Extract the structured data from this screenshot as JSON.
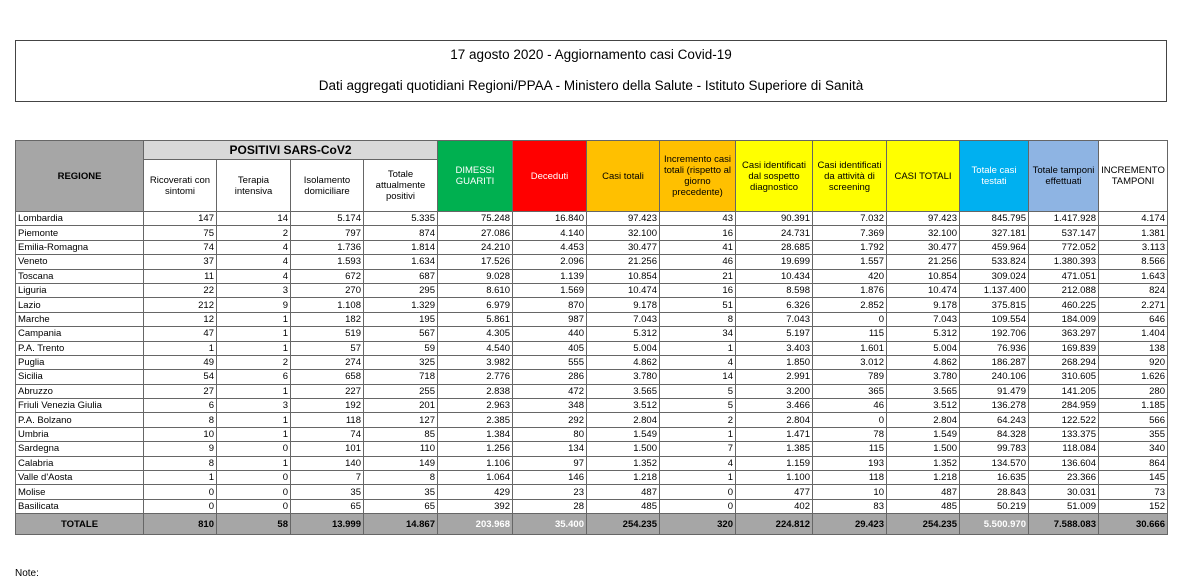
{
  "header": {
    "title": "17 agosto 2020 - Aggiornamento casi Covid-19",
    "subtitle": "Dati aggregati quotidiani Regioni/PPAA - Ministero della Salute - Istituto Superiore di Sanità"
  },
  "table": {
    "group_header": "POSITIVI SARS-CoV2",
    "columns": [
      "REGIONE",
      "Ricoverati con sintomi",
      "Terapia intensiva",
      "Isolamento domiciliare",
      "Totale attualmente positivi",
      "DIMESSI GUARITI",
      "Deceduti",
      "Casi totali",
      "Incremento casi totali (rispetto al giorno precedente)",
      "Casi identificati dal sospetto diagnostico",
      "Casi identificati da attività di screening",
      "CASI TOTALI",
      "Totale casi testati",
      "Totale tamponi effettuati",
      "INCREMENTO TAMPONI"
    ],
    "rows": [
      [
        "Lombardia",
        "147",
        "14",
        "5.174",
        "5.335",
        "75.248",
        "16.840",
        "97.423",
        "43",
        "90.391",
        "7.032",
        "97.423",
        "845.795",
        "1.417.928",
        "4.174"
      ],
      [
        "Piemonte",
        "75",
        "2",
        "797",
        "874",
        "27.086",
        "4.140",
        "32.100",
        "16",
        "24.731",
        "7.369",
        "32.100",
        "327.181",
        "537.147",
        "1.381"
      ],
      [
        "Emilia-Romagna",
        "74",
        "4",
        "1.736",
        "1.814",
        "24.210",
        "4.453",
        "30.477",
        "41",
        "28.685",
        "1.792",
        "30.477",
        "459.964",
        "772.052",
        "3.113"
      ],
      [
        "Veneto",
        "37",
        "4",
        "1.593",
        "1.634",
        "17.526",
        "2.096",
        "21.256",
        "46",
        "19.699",
        "1.557",
        "21.256",
        "533.824",
        "1.380.393",
        "8.566"
      ],
      [
        "Toscana",
        "11",
        "4",
        "672",
        "687",
        "9.028",
        "1.139",
        "10.854",
        "21",
        "10.434",
        "420",
        "10.854",
        "309.024",
        "471.051",
        "1.643"
      ],
      [
        "Liguria",
        "22",
        "3",
        "270",
        "295",
        "8.610",
        "1.569",
        "10.474",
        "16",
        "8.598",
        "1.876",
        "10.474",
        "1.137.400",
        "212.088",
        "824"
      ],
      [
        "Lazio",
        "212",
        "9",
        "1.108",
        "1.329",
        "6.979",
        "870",
        "9.178",
        "51",
        "6.326",
        "2.852",
        "9.178",
        "375.815",
        "460.225",
        "2.271"
      ],
      [
        "Marche",
        "12",
        "1",
        "182",
        "195",
        "5.861",
        "987",
        "7.043",
        "8",
        "7.043",
        "0",
        "7.043",
        "109.554",
        "184.009",
        "646"
      ],
      [
        "Campania",
        "47",
        "1",
        "519",
        "567",
        "4.305",
        "440",
        "5.312",
        "34",
        "5.197",
        "115",
        "5.312",
        "192.706",
        "363.297",
        "1.404"
      ],
      [
        "P.A. Trento",
        "1",
        "1",
        "57",
        "59",
        "4.540",
        "405",
        "5.004",
        "1",
        "3.403",
        "1.601",
        "5.004",
        "76.936",
        "169.839",
        "138"
      ],
      [
        "Puglia",
        "49",
        "2",
        "274",
        "325",
        "3.982",
        "555",
        "4.862",
        "4",
        "1.850",
        "3.012",
        "4.862",
        "186.287",
        "268.294",
        "920"
      ],
      [
        "Sicilia",
        "54",
        "6",
        "658",
        "718",
        "2.776",
        "286",
        "3.780",
        "14",
        "2.991",
        "789",
        "3.780",
        "240.106",
        "310.605",
        "1.626"
      ],
      [
        "Abruzzo",
        "27",
        "1",
        "227",
        "255",
        "2.838",
        "472",
        "3.565",
        "5",
        "3.200",
        "365",
        "3.565",
        "91.479",
        "141.205",
        "280"
      ],
      [
        "Friuli Venezia Giulia",
        "6",
        "3",
        "192",
        "201",
        "2.963",
        "348",
        "3.512",
        "5",
        "3.466",
        "46",
        "3.512",
        "136.278",
        "284.959",
        "1.185"
      ],
      [
        "P.A. Bolzano",
        "8",
        "1",
        "118",
        "127",
        "2.385",
        "292",
        "2.804",
        "2",
        "2.804",
        "0",
        "2.804",
        "64.243",
        "122.522",
        "566"
      ],
      [
        "Umbria",
        "10",
        "1",
        "74",
        "85",
        "1.384",
        "80",
        "1.549",
        "1",
        "1.471",
        "78",
        "1.549",
        "84.328",
        "133.375",
        "355"
      ],
      [
        "Sardegna",
        "9",
        "0",
        "101",
        "110",
        "1.256",
        "134",
        "1.500",
        "7",
        "1.385",
        "115",
        "1.500",
        "99.783",
        "118.084",
        "340"
      ],
      [
        "Calabria",
        "8",
        "1",
        "140",
        "149",
        "1.106",
        "97",
        "1.352",
        "4",
        "1.159",
        "193",
        "1.352",
        "134.570",
        "136.604",
        "864"
      ],
      [
        "Valle d'Aosta",
        "1",
        "0",
        "7",
        "8",
        "1.064",
        "146",
        "1.218",
        "1",
        "1.100",
        "118",
        "1.218",
        "16.635",
        "23.366",
        "145"
      ],
      [
        "Molise",
        "0",
        "0",
        "35",
        "35",
        "429",
        "23",
        "487",
        "0",
        "477",
        "10",
        "487",
        "28.843",
        "30.031",
        "73"
      ],
      [
        "Basilicata",
        "0",
        "0",
        "65",
        "65",
        "392",
        "28",
        "485",
        "0",
        "402",
        "83",
        "485",
        "50.219",
        "51.009",
        "152"
      ]
    ],
    "total_row": [
      "TOTALE",
      "810",
      "58",
      "13.999",
      "14.867",
      "203.968",
      "35.400",
      "254.235",
      "320",
      "224.812",
      "29.423",
      "254.235",
      "5.500.970",
      "7.588.083",
      "30.666"
    ]
  },
  "footer": {
    "note": "Note:"
  }
}
